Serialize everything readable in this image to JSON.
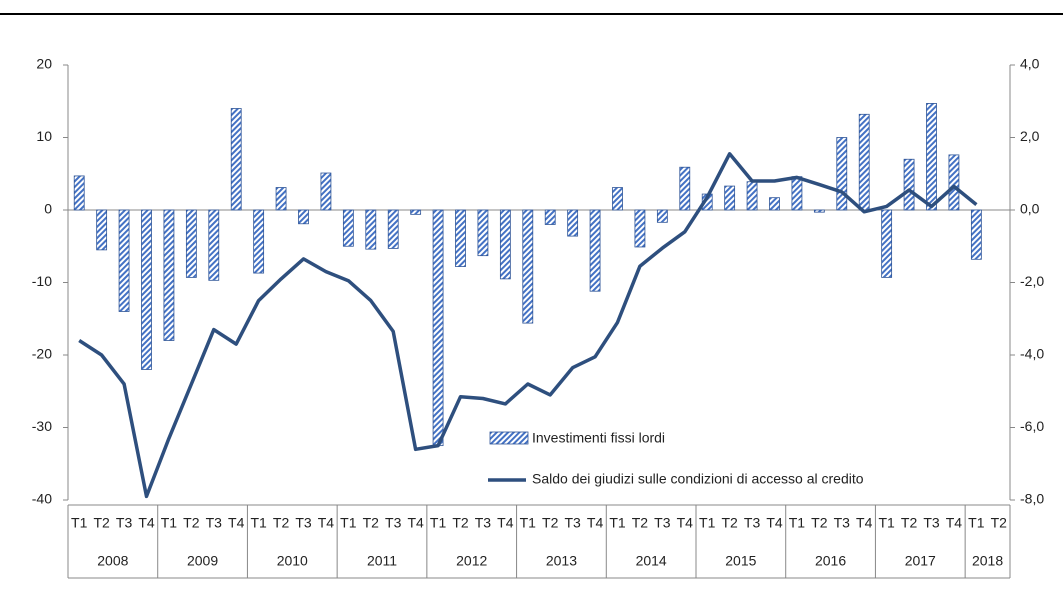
{
  "chart_data": {
    "type": "bar_line",
    "categories": [
      "T1",
      "T2",
      "T3",
      "T4",
      "T1",
      "T2",
      "T3",
      "T4",
      "T1",
      "T2",
      "T3",
      "T4",
      "T1",
      "T2",
      "T3",
      "T4",
      "T1",
      "T2",
      "T3",
      "T4",
      "T1",
      "T2",
      "T3",
      "T4",
      "T1",
      "T2",
      "T3",
      "T4",
      "T1",
      "T2",
      "T3",
      "T4",
      "T1",
      "T2",
      "T3",
      "T4",
      "T1",
      "T2",
      "T3",
      "T4",
      "T1",
      "T2"
    ],
    "years": [
      "2008",
      "2009",
      "2010",
      "2011",
      "2012",
      "2013",
      "2014",
      "2015",
      "2016",
      "2017",
      "2018"
    ],
    "series": [
      {
        "name": "Investimenti fissi lordi",
        "type": "bar",
        "color": "#4472c4",
        "values": [
          4.7,
          -5.5,
          -14,
          -22,
          -18,
          -9.3,
          -9.7,
          14,
          -8.7,
          3.1,
          -1.9,
          5.1,
          -5,
          -5.4,
          -5.3,
          -0.6,
          -32.5,
          -7.8,
          -6.3,
          -9.5,
          -15.6,
          -2,
          -3.6,
          -11.2,
          3.1,
          -5.1,
          -1.7,
          5.9,
          2.2,
          3.3,
          3.9,
          1.7,
          4.6,
          -0.3,
          10,
          13.2,
          -9.3,
          7,
          14.7,
          7.6,
          -6.8,
          null
        ]
      },
      {
        "name": "Saldo dei giudizi sulle condizioni di accesso al credito",
        "type": "line",
        "axis": "y2",
        "color": "#2e4f7e",
        "values": [
          -3.6,
          -4.0,
          -4.8,
          -7.9,
          -6.3,
          -4.8,
          -3.3,
          -3.7,
          -2.5,
          -1.9,
          -1.35,
          -1.7,
          -1.95,
          -2.5,
          -3.35,
          -6.6,
          -6.5,
          -5.15,
          -5.2,
          -5.35,
          -4.8,
          -5.1,
          -4.35,
          -4.05,
          -3.1,
          -1.55,
          -1.05,
          -0.6,
          0.35,
          1.55,
          0.8,
          0.8,
          0.9,
          0.7,
          0.5,
          -0.05,
          0.1,
          0.55,
          0.1,
          0.65,
          0.15,
          null
        ]
      }
    ],
    "ylim": [
      -40,
      20
    ],
    "yticks": [
      -40,
      -30,
      -20,
      -10,
      0,
      10,
      20
    ],
    "y2lim": [
      -8,
      4
    ],
    "y2ticks": [
      {
        "value": -8,
        "label": "-8,0"
      },
      {
        "value": -6,
        "label": "-6,0"
      },
      {
        "value": -4,
        "label": "-4,0"
      },
      {
        "value": -2,
        "label": "-2,0"
      },
      {
        "value": 0,
        "label": "0,0"
      },
      {
        "value": 2,
        "label": "2,0"
      },
      {
        "value": 4,
        "label": "4,0"
      }
    ]
  }
}
